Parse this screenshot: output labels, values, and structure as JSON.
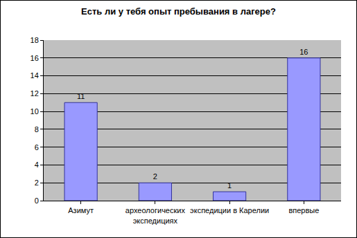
{
  "chart_data": {
    "type": "bar",
    "title": "Есть ли у тебя опыт пребывания в лагере?",
    "categories": [
      "Азимут",
      "археологических экспедициях",
      "экспедиции в Карелии",
      "впервые"
    ],
    "values": [
      11,
      2,
      1,
      16
    ],
    "color": "#9999ff",
    "ylim": [
      0,
      18
    ],
    "yticks": [
      0,
      2,
      4,
      6,
      8,
      10,
      12,
      14,
      16,
      18
    ],
    "grid": true,
    "data_labels": true
  }
}
